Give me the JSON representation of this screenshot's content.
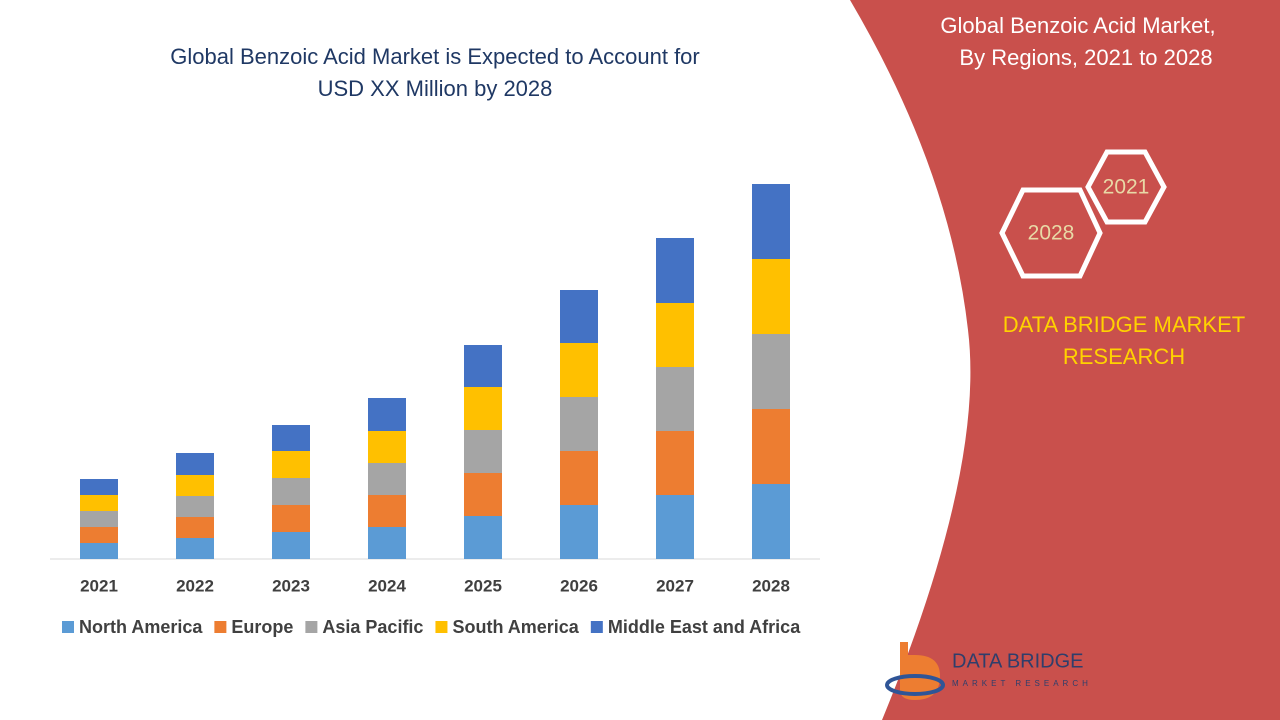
{
  "chart_data": {
    "type": "bar",
    "stacked": true,
    "title": [
      "Global Benzoic Acid Market is Expected to Account for",
      "USD XX Million by 2028"
    ],
    "categories": [
      "2021",
      "2022",
      "2023",
      "2024",
      "2025",
      "2026",
      "2027",
      "2028"
    ],
    "series": [
      {
        "name": "North America",
        "color": "#5b9bd5",
        "values": [
          16,
          21,
          27,
          32,
          43,
          54,
          64,
          75
        ]
      },
      {
        "name": "Europe",
        "color": "#ed7d31",
        "values": [
          16,
          21,
          27,
          32,
          43,
          54,
          64,
          75
        ]
      },
      {
        "name": "Asia Pacific",
        "color": "#a5a5a5",
        "values": [
          16,
          21,
          27,
          32,
          43,
          54,
          64,
          75
        ]
      },
      {
        "name": "South America",
        "color": "#ffc000",
        "values": [
          16,
          21,
          27,
          32,
          43,
          54,
          64,
          75
        ]
      },
      {
        "name": "Middle East and Africa",
        "color": "#4472c4",
        "values": [
          16,
          22,
          26,
          33,
          42,
          53,
          65,
          75
        ]
      }
    ],
    "ylim": [
      0,
      400
    ],
    "legend": "bottom"
  },
  "side_panel": {
    "title": [
      "Global Benzoic Acid Market,",
      "By Regions, 2021 to 2028"
    ],
    "hexagons": [
      "2021",
      "2028"
    ],
    "brand": [
      "DATA BRIDGE MARKET",
      "RESEARCH"
    ]
  },
  "logo": {
    "name": "DATA BRIDGE",
    "tagline": "MARKET RESEARCH"
  }
}
